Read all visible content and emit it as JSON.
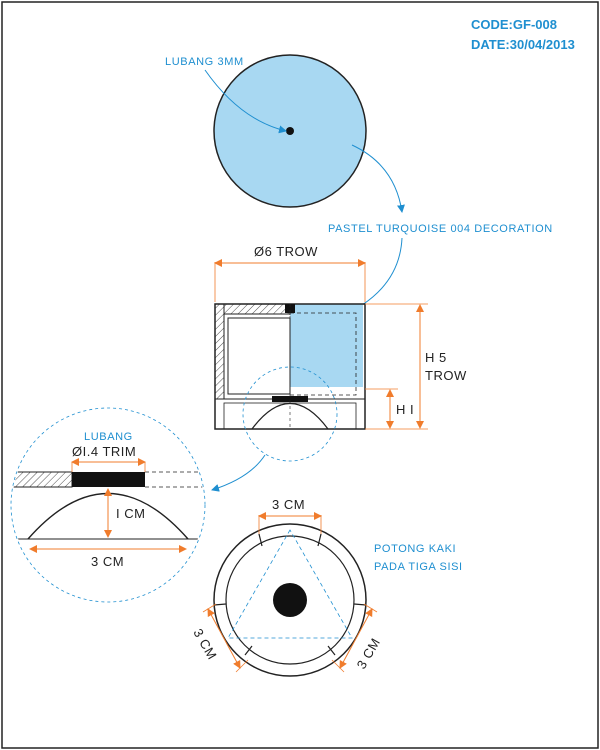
{
  "header": {
    "code": "CODE:GF-008",
    "date": "DATE:30/04/2013"
  },
  "top_view": {
    "hole_label": "LUBANG 3MM",
    "decoration_label": "PASTEL TURQUOISE 004 DECORATION"
  },
  "side_view": {
    "diameter_label": "Ø6 TROW",
    "height_label_line1": "H 5",
    "height_label_line2": "TROW",
    "inner_height_label": "H I"
  },
  "detail_view": {
    "hole_label_line1": "LUBANG",
    "hole_label_line2": "ØI.4 TRIM",
    "height_label": "I CM",
    "width_label": "3 CM"
  },
  "bottom_view": {
    "top_dim_label": "3 CM",
    "left_dim_label": "3 CM",
    "right_dim_label": "3 CM",
    "note_line1": "POTONG KAKI",
    "note_line2": "PADA TIGA SISI"
  },
  "colors": {
    "accent": "#1f8fd0",
    "fill": "#a8d8f2",
    "dimension": "#f07c2c",
    "ink": "#222222"
  }
}
